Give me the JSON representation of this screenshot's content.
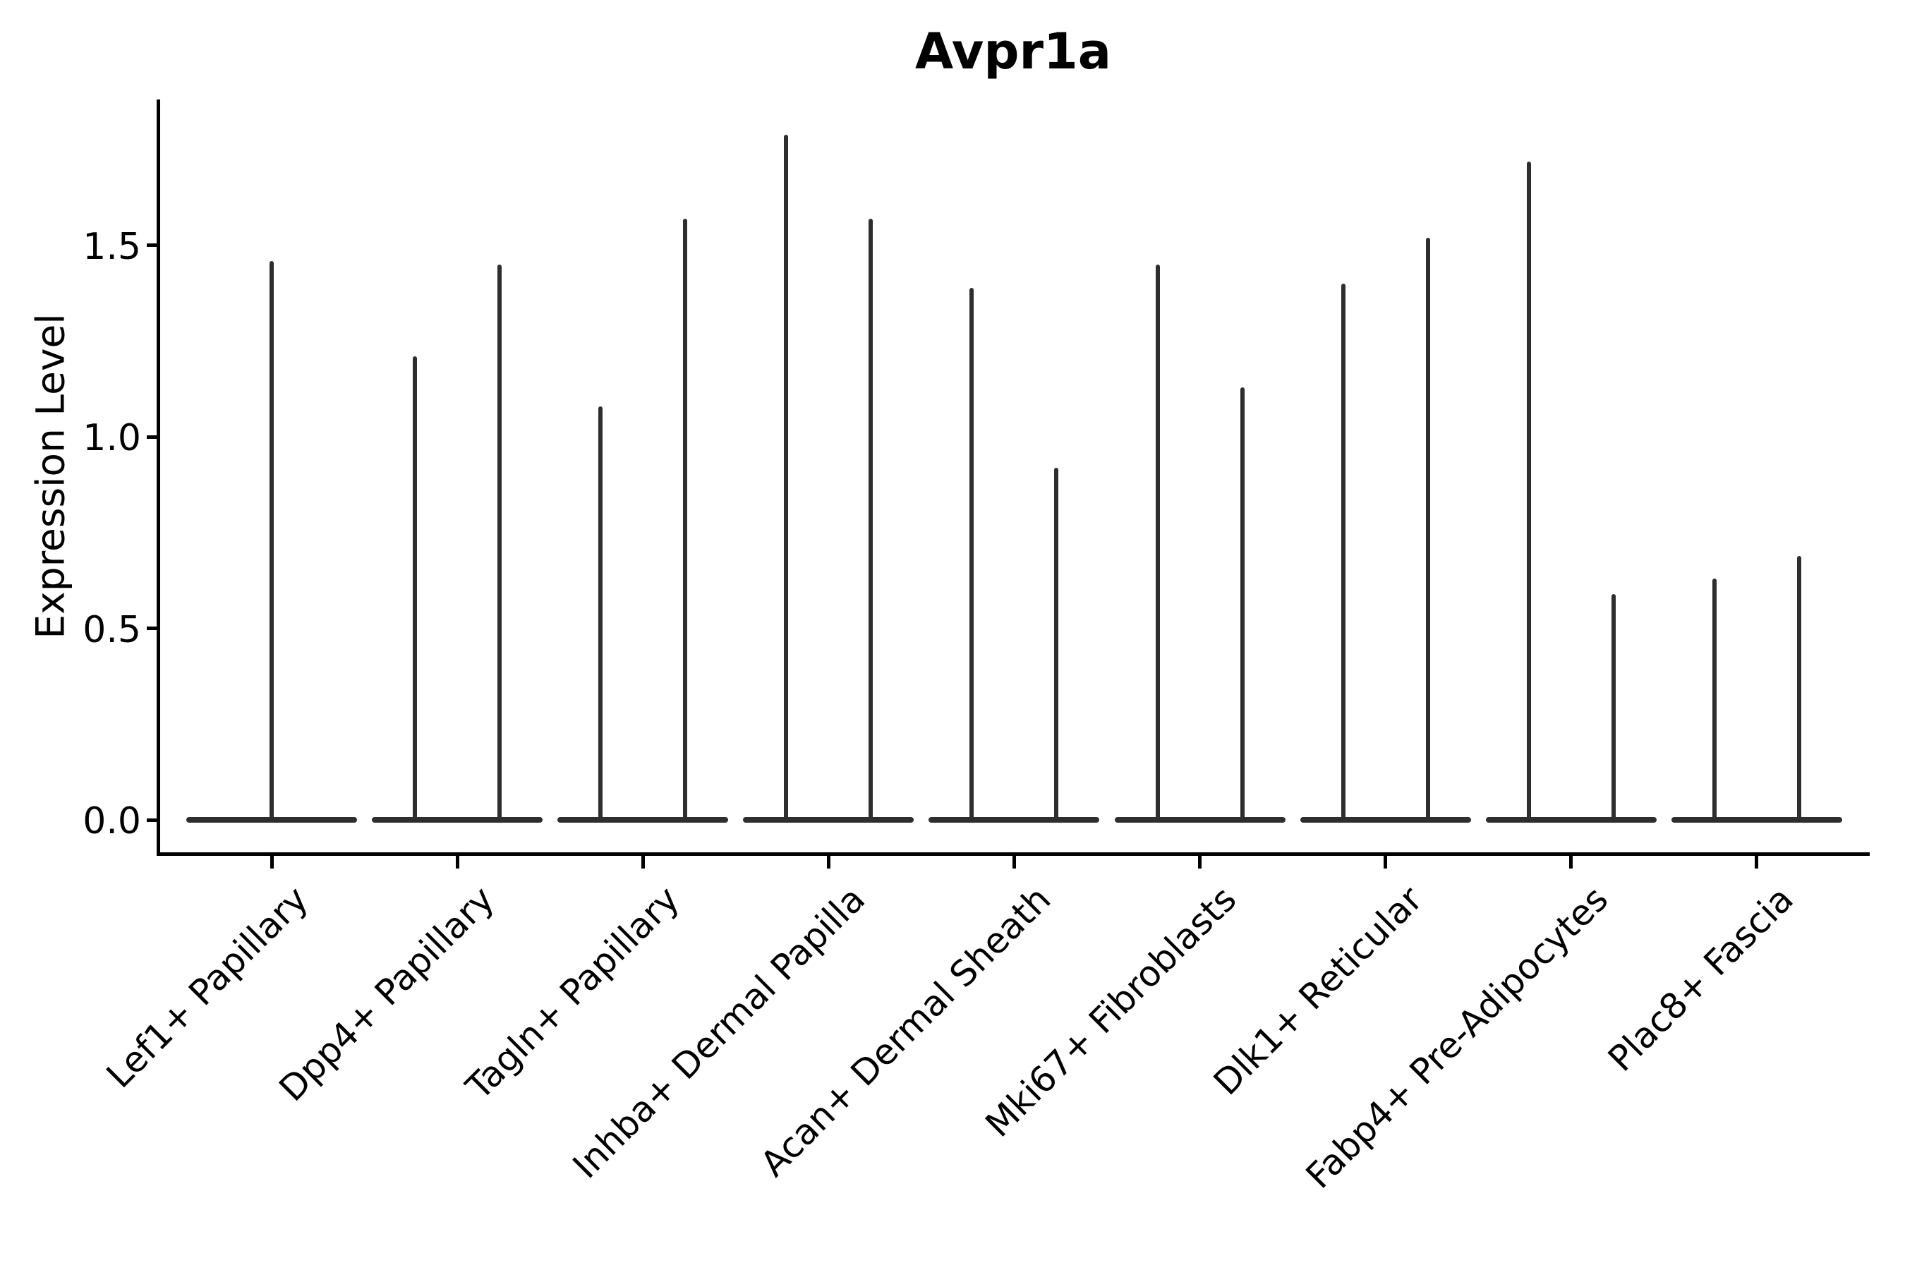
{
  "title": "Avpr1a",
  "ylabel": "Expression Level",
  "colors": {
    "ink": "#000000",
    "violin": "#2e2e2e",
    "background": "#ffffff"
  },
  "chart_data": {
    "type": "violin",
    "title": "Avpr1a",
    "xlabel": "",
    "ylabel": "Expression Level",
    "ylim": [
      -0.09,
      1.88
    ],
    "yticks": [
      {
        "value": 0.0,
        "label": "0.0"
      },
      {
        "value": 0.5,
        "label": "0.5"
      },
      {
        "value": 1.0,
        "label": "1.0"
      },
      {
        "value": 1.5,
        "label": "1.5"
      }
    ],
    "grid": false,
    "legend": "none",
    "violin_min": 0.0,
    "categories": [
      {
        "label": "Lef1+ Papillary",
        "violin_max": [
          1.46
        ]
      },
      {
        "label": "Dpp4+ Papillary",
        "violin_max": [
          1.21,
          1.45
        ]
      },
      {
        "label": "Tagln+ Papillary",
        "violin_max": [
          1.08,
          1.57
        ]
      },
      {
        "label": "Inhba+ Dermal Papilla",
        "violin_max": [
          1.79,
          1.57
        ]
      },
      {
        "label": "Acan+ Dermal Sheath",
        "violin_max": [
          1.39,
          0.92
        ]
      },
      {
        "label": "Mki67+ Fibroblasts",
        "violin_max": [
          1.45,
          1.13
        ]
      },
      {
        "label": "Dlk1+ Reticular",
        "violin_max": [
          1.4,
          1.52
        ]
      },
      {
        "label": "Fabp4+ Pre-Adipocytes",
        "violin_max": [
          1.72,
          0.59
        ]
      },
      {
        "label": "Plac8+ Fascia",
        "violin_max": [
          0.63,
          0.69
        ]
      }
    ]
  }
}
